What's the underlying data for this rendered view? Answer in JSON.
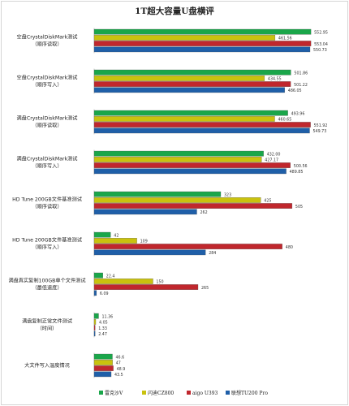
{
  "chart_data": {
    "type": "bar",
    "orientation": "horizontal",
    "title": "1T超大容量U盘横评",
    "categories": [
      [
        "空盘CrystalDiskMark测试",
        "（顺序读取）"
      ],
      [
        "空盘CrystalDiskMark测试",
        "（顺序写入）"
      ],
      [
        "满盘CrystalDiskMark测试",
        "（顺序读取）"
      ],
      [
        "满盘CrystalDiskMark测试",
        "（顺序写入）"
      ],
      [
        "HD Tune 200GB文件基准测试",
        "（顺序读取）"
      ],
      [
        "HD Tune 200GB文件基准测试",
        "（顺序写入）"
      ],
      [
        "满盘真实复制100GB单个文件测试",
        "（最低速度）"
      ],
      [
        "满盘复制正常文件测试",
        "（时间）"
      ],
      [
        "大文件写入温度情况"
      ]
    ],
    "series": [
      {
        "name": "雷克沙V",
        "color": "#1aa64a",
        "values": [
          552.95,
          501.86,
          493.96,
          432.0,
          323,
          42,
          22.4,
          11.36,
          46.6
        ],
        "labels": [
          "552.95",
          "501.86",
          "493.96",
          "432.00",
          "323",
          "42",
          "22.4",
          "11.36",
          "46.6"
        ]
      },
      {
        "name": "闪迪CZ800",
        "color": "#c9c20e",
        "values": [
          461.56,
          434.55,
          460.65,
          427.17,
          425,
          109,
          150,
          4.05,
          47
        ],
        "labels": [
          "461.56",
          "434.55",
          "460.65",
          "427.17",
          "425",
          "109",
          "150",
          "4.05",
          "47"
        ]
      },
      {
        "name": "aigo U393",
        "color": "#c0272d",
        "values": [
          553.04,
          501.22,
          551.92,
          500.56,
          505,
          480,
          265,
          1.33,
          48.9
        ],
        "labels": [
          "553.04",
          "501.22",
          "551.92",
          "500.56",
          "505",
          "480",
          "265",
          "1.33",
          "48.9"
        ]
      },
      {
        "name": "联想TU200 Pro",
        "color": "#1f5fa8",
        "values": [
          550.73,
          486.05,
          549.73,
          489.85,
          262,
          284,
          6.09,
          2.47,
          43.5
        ],
        "labels": [
          "550.73",
          "486.05",
          "549.73",
          "489.85",
          "262",
          "284",
          "6.09",
          "2.47",
          "43.5"
        ]
      }
    ],
    "xlim": [
      0,
      600
    ],
    "grid": false,
    "legend": "bottom"
  }
}
